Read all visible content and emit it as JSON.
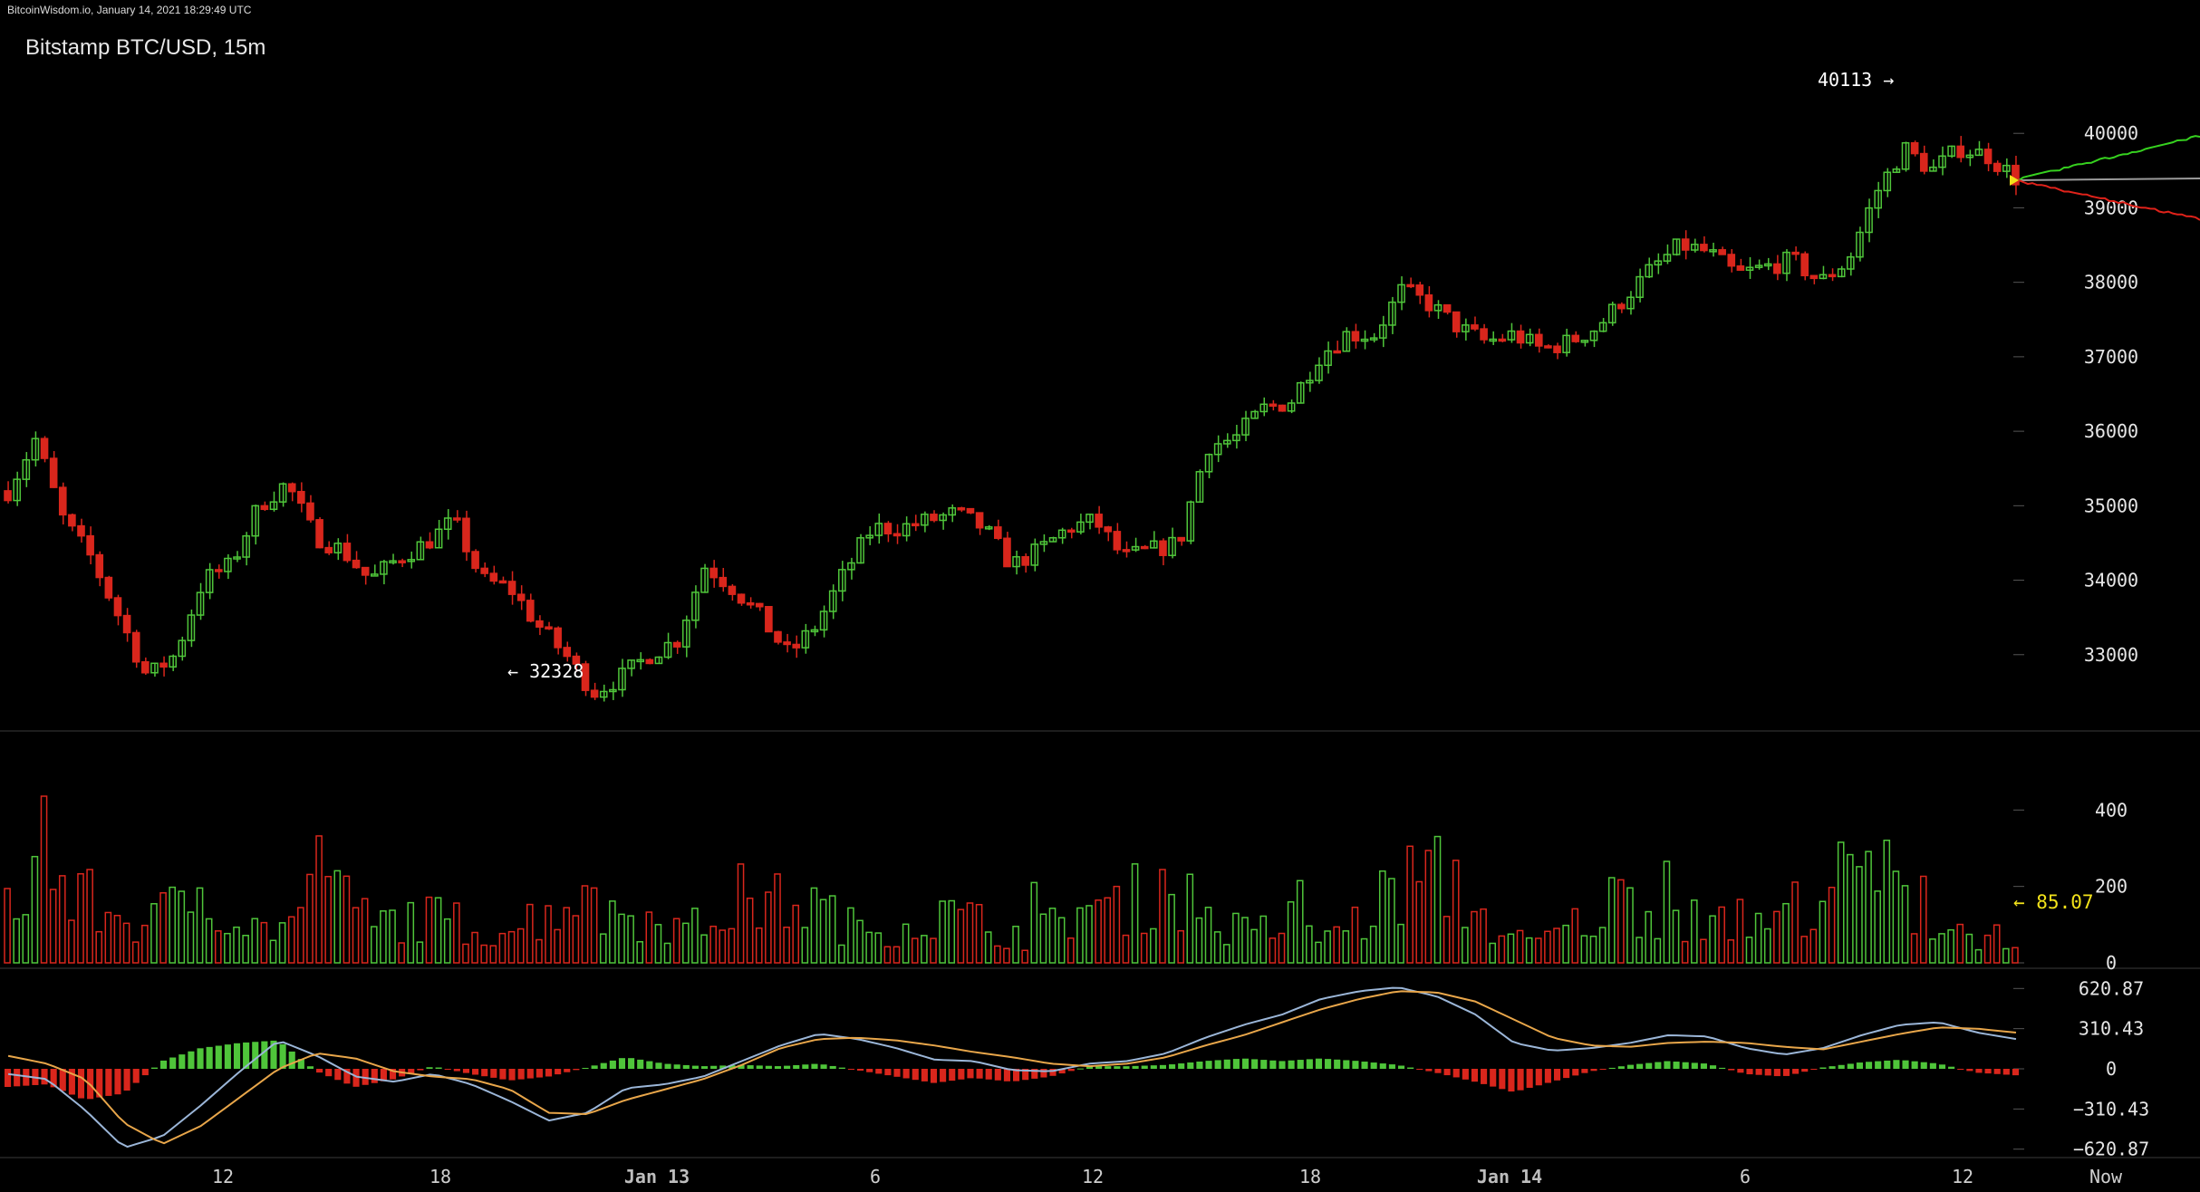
{
  "header": {
    "site_and_time": "BitcoinWisdom.io, January 14, 2021 18:29:49 UTC",
    "title": "Bitstamp BTC/USD, 15m"
  },
  "colors": {
    "background": "#000000",
    "up": "#4fc53a",
    "down": "#d9261c",
    "macd_line": "#9bb6d8",
    "signal_line": "#e8a64a",
    "annotation_yellow": "#f2e21a",
    "depth_green": "#36d11f",
    "depth_red": "#e0221a",
    "depth_gray": "#9a9a9a"
  },
  "chart_data": {
    "type": "candlestick",
    "price_axis": {
      "ticks": [
        "40000",
        "39000",
        "38000",
        "37000",
        "36000",
        "35000",
        "34000",
        "33000"
      ],
      "ylim": [
        32000,
        41000
      ]
    },
    "volume_axis": {
      "ticks": [
        "400",
        "200",
        "0"
      ],
      "ylim": [
        0,
        550
      ]
    },
    "macd_axis": {
      "ticks": [
        "620.87",
        "310.43",
        "0",
        "−310.43",
        "−620.87"
      ],
      "ylim": [
        -700,
        700
      ]
    },
    "x_ticks": [
      "12",
      "18",
      "Jan 13",
      "6",
      "12",
      "18",
      "Jan 14",
      "6",
      "12",
      "Now"
    ],
    "annotations": {
      "high": "40113 →",
      "low": "← 32328",
      "last_volume": "← 85.07"
    },
    "price_keypoints": [
      35200,
      35900,
      34800,
      34300,
      33500,
      32700,
      33000,
      34000,
      34200,
      35000,
      35300,
      34600,
      34400,
      34000,
      34300,
      34500,
      34800,
      34000,
      33900,
      33400,
      33000,
      32500,
      32700,
      33000,
      33200,
      34200,
      33900,
      33500,
      33000,
      33400,
      34100,
      34700,
      34700,
      34800,
      34900,
      34700,
      34200,
      34400,
      34700,
      34800,
      34300,
      34400,
      34500,
      35800,
      35900,
      36300,
      36400,
      37000,
      37300,
      37300,
      37900,
      37700,
      37400,
      37200,
      37300,
      37100,
      37200,
      37400,
      37800,
      38200,
      38500,
      38400,
      38100,
      38200,
      38300,
      38000,
      38300,
      39200,
      39800,
      39500,
      39800,
      39700,
      39400
    ],
    "volume_keypoints": [
      180,
      240,
      200,
      160,
      120,
      110,
      150,
      230,
      120,
      90,
      110,
      200,
      160,
      100,
      130,
      120,
      110,
      90,
      100,
      140,
      180,
      130,
      150,
      110,
      90,
      120,
      180,
      160,
      170,
      140,
      90,
      100,
      110,
      130,
      120,
      90,
      80,
      100,
      160,
      140,
      180,
      220,
      160,
      100,
      80,
      100,
      70,
      90,
      120,
      200,
      240,
      220,
      140,
      70,
      50,
      90,
      120,
      180,
      160,
      130,
      120,
      90,
      100,
      140,
      200,
      220,
      260,
      180,
      110,
      90,
      70,
      85
    ],
    "macd_keypoints": [
      -40,
      -80,
      -320,
      -610,
      -520,
      -280,
      -20,
      220,
      100,
      -60,
      -100,
      -40,
      -120,
      -250,
      -400,
      -340,
      -150,
      -120,
      -60,
      60,
      180,
      270,
      230,
      160,
      70,
      60,
      -10,
      -20,
      40,
      60,
      120,
      240,
      340,
      420,
      540,
      600,
      630,
      560,
      420,
      200,
      140,
      160,
      200,
      260,
      250,
      160,
      110,
      160,
      260,
      340,
      360,
      280,
      230
    ],
    "signal_keypoints": [
      100,
      40,
      -80,
      -420,
      -580,
      -440,
      -220,
      0,
      120,
      80,
      -20,
      -60,
      -80,
      -160,
      -340,
      -350,
      -240,
      -160,
      -80,
      30,
      160,
      230,
      240,
      220,
      180,
      130,
      90,
      40,
      20,
      40,
      90,
      180,
      260,
      360,
      460,
      540,
      600,
      590,
      520,
      380,
      240,
      180,
      170,
      200,
      210,
      200,
      170,
      150,
      210,
      270,
      320,
      310,
      280
    ],
    "depth_projection": {
      "center": "gray",
      "upper": "green",
      "lower": "red"
    }
  }
}
